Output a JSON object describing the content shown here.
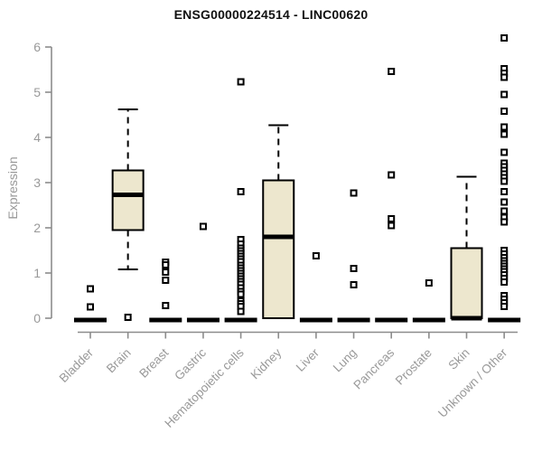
{
  "chart_data": {
    "type": "boxplot",
    "title": "ENSG00000224514 - LINC00620",
    "ylabel": "Expression",
    "xlabel": "",
    "ylim": [
      0,
      6.3
    ],
    "yticks": [
      0,
      1,
      2,
      3,
      4,
      5,
      6
    ],
    "grid": false,
    "legend": "none",
    "box_fill": "#EDE7CE",
    "box_border": "#000000",
    "axis_color": "#8C8C8C",
    "tick_label_color": "#999999",
    "title_color": "#111111",
    "categories": [
      "Bladder",
      "Brain",
      "Breast",
      "Gastric",
      "Hematopoietic cells",
      "Kidney",
      "Liver",
      "Lung",
      "Pancreas",
      "Prostate",
      "Skin",
      "Unknown / Other"
    ],
    "boxes": [
      {
        "category": "Bladder",
        "whisker_low": 0,
        "q1": 0,
        "median": 0,
        "q3": 0,
        "whisker_high": 0,
        "outliers": [
          0.65,
          0.25
        ]
      },
      {
        "category": "Brain",
        "whisker_low": 1.08,
        "q1": 1.95,
        "median": 2.73,
        "q3": 3.27,
        "whisker_high": 4.62,
        "outliers": [
          0.02
        ]
      },
      {
        "category": "Breast",
        "whisker_low": 0,
        "q1": 0,
        "median": 0,
        "q3": 0,
        "whisker_high": 0,
        "outliers": [
          1.24,
          1.18,
          1.02,
          0.84,
          0.28
        ]
      },
      {
        "category": "Gastric",
        "whisker_low": 0,
        "q1": 0,
        "median": 0,
        "q3": 0,
        "whisker_high": 0,
        "outliers": [
          2.03
        ]
      },
      {
        "category": "Hematopoietic cells",
        "whisker_low": 0,
        "q1": 0,
        "median": 0,
        "q3": 0,
        "whisker_high": 0,
        "outliers": [
          5.23,
          2.8,
          1.74,
          1.64,
          1.55,
          1.49,
          1.43,
          1.37,
          1.31,
          1.25,
          1.17,
          1.11,
          1.05,
          0.99,
          0.93,
          0.87,
          0.81,
          0.75,
          0.67,
          0.59,
          0.53,
          0.38,
          0.32,
          0.26,
          0.15
        ]
      },
      {
        "category": "Kidney",
        "whisker_low": 0,
        "q1": 0,
        "median": 1.8,
        "q3": 3.05,
        "whisker_high": 4.27,
        "outliers": []
      },
      {
        "category": "Liver",
        "whisker_low": 0,
        "q1": 0,
        "median": 0,
        "q3": 0,
        "whisker_high": 0,
        "outliers": [
          1.38
        ]
      },
      {
        "category": "Lung",
        "whisker_low": 0,
        "q1": 0,
        "median": 0,
        "q3": 0,
        "whisker_high": 0,
        "outliers": [
          2.77,
          1.1,
          0.74
        ]
      },
      {
        "category": "Pancreas",
        "whisker_low": 0,
        "q1": 0,
        "median": 0,
        "q3": 0,
        "whisker_high": 0,
        "outliers": [
          5.46,
          3.17,
          2.2,
          2.05
        ]
      },
      {
        "category": "Prostate",
        "whisker_low": 0,
        "q1": 0,
        "median": 0,
        "q3": 0,
        "whisker_high": 0,
        "outliers": [
          0.78
        ]
      },
      {
        "category": "Skin",
        "whisker_low": 0,
        "q1": 0,
        "median": 0,
        "q3": 1.55,
        "whisker_high": 3.13,
        "outliers": []
      },
      {
        "category": "Unknown / Other",
        "whisker_low": 0,
        "q1": 0,
        "median": 0,
        "q3": 0,
        "whisker_high": 0,
        "outliers": [
          6.2,
          5.52,
          5.42,
          5.33,
          4.95,
          4.58,
          4.23,
          4.07,
          3.67,
          3.43,
          3.35,
          3.27,
          3.19,
          3.11,
          3.03,
          2.8,
          2.57,
          2.37,
          2.23,
          2.13,
          1.5,
          1.42,
          1.34,
          1.27,
          1.21,
          1.15,
          1.09,
          1.03,
          0.96,
          0.88,
          0.8,
          0.5,
          0.42,
          0.34,
          0.26
        ]
      }
    ]
  }
}
